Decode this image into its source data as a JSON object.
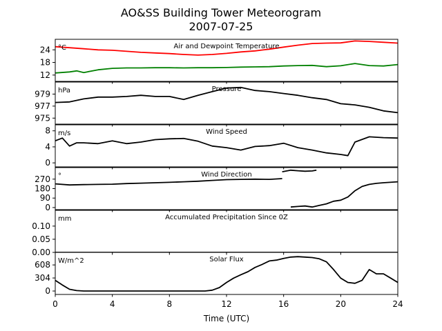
{
  "figure": {
    "title_line1": "AO&SS Building Tower Meteorogram",
    "title_line2": "2007-07-25",
    "xlabel": "Time (UTC)",
    "x_ticks": [
      0,
      4,
      8,
      12,
      16,
      20,
      24
    ]
  },
  "chart_data": [
    {
      "type": "line",
      "title": "Air and Dewpoint Temperature",
      "unit": "°C",
      "ylim": [
        9,
        29
      ],
      "yticks": [
        12,
        18,
        24
      ],
      "series": [
        {
          "color": "#ff0000",
          "x": [
            0,
            1,
            2,
            3,
            4,
            5,
            6,
            7,
            8,
            9,
            10,
            11,
            12,
            13,
            14,
            15,
            16,
            17,
            18,
            19,
            20,
            21,
            22,
            23,
            24
          ],
          "values": [
            25.5,
            25,
            24.5,
            24,
            23.8,
            23.3,
            22.8,
            22.5,
            22.2,
            21.8,
            21.5,
            21.8,
            22.3,
            23,
            23.5,
            24.3,
            25.3,
            26.2,
            27,
            27.2,
            27.3,
            28.2,
            28,
            27.6,
            27.2
          ]
        },
        {
          "color": "#008000",
          "x": [
            0,
            1,
            1.5,
            2,
            3,
            4,
            5,
            6,
            7,
            8,
            9,
            10,
            11,
            12,
            13,
            14,
            15,
            16,
            17,
            18,
            19,
            20,
            21,
            22,
            23,
            24
          ],
          "values": [
            13,
            13.5,
            14,
            13.2,
            14.5,
            15.2,
            15.4,
            15.4,
            15.5,
            15.5,
            15.4,
            15.5,
            15.5,
            15.6,
            15.8,
            15.9,
            16,
            16.3,
            16.5,
            16.6,
            16,
            16.4,
            17.5,
            16.5,
            16.3,
            17
          ]
        }
      ]
    },
    {
      "type": "line",
      "title": "Pressure",
      "unit": "hPa",
      "ylim": [
        974,
        981
      ],
      "yticks": [
        975,
        977,
        979
      ],
      "series": [
        {
          "color": "#000000",
          "x": [
            0,
            1,
            2,
            3,
            4,
            5,
            6,
            7,
            8,
            9,
            10,
            11,
            12,
            13,
            14,
            15,
            16,
            17,
            18,
            19,
            20,
            21,
            22,
            23,
            24
          ],
          "values": [
            977.6,
            977.7,
            978.2,
            978.5,
            978.5,
            978.6,
            978.8,
            978.6,
            978.6,
            978.1,
            978.8,
            979.4,
            980,
            980.1,
            979.6,
            979.4,
            979.1,
            978.8,
            978.4,
            978.1,
            977.4,
            977.2,
            976.8,
            976.2,
            975.9
          ]
        }
      ]
    },
    {
      "type": "line",
      "title": "Wind Speed",
      "unit": "m/s",
      "ylim": [
        -1,
        9.5
      ],
      "yticks": [
        0,
        4,
        8
      ],
      "series": [
        {
          "color": "#000000",
          "x": [
            0,
            0.5,
            1,
            1.5,
            2,
            3,
            4,
            5,
            6,
            7,
            8,
            9,
            10,
            11,
            12,
            13,
            14,
            15,
            16,
            17,
            18,
            19,
            20,
            20.5,
            21,
            22,
            23,
            24
          ],
          "values": [
            5.5,
            6.2,
            4.2,
            5,
            5,
            4.8,
            5.5,
            4.8,
            5.2,
            5.8,
            6,
            6.1,
            5.4,
            4.2,
            3.8,
            3.2,
            4.1,
            4.3,
            4.9,
            3.8,
            3.2,
            2.5,
            2.1,
            1.8,
            5.2,
            6.5,
            6.3,
            6.2
          ]
        }
      ]
    },
    {
      "type": "line",
      "title": "Wind Direction",
      "unit": "°",
      "ylim": [
        -20,
        380
      ],
      "yticks": [
        0,
        90,
        180,
        270
      ],
      "series": [
        {
          "color": "#000000",
          "x": [
            0,
            1,
            2,
            3,
            4,
            5,
            6,
            7,
            8,
            9,
            10,
            11,
            12,
            13,
            14,
            15,
            15.9
          ],
          "values": [
            225,
            215,
            218,
            220,
            222,
            228,
            232,
            236,
            240,
            245,
            250,
            258,
            265,
            268,
            270,
            268,
            275
          ]
        },
        {
          "color": "#000000",
          "x": [
            15.9,
            16.5,
            17,
            17.5,
            18,
            18.3
          ],
          "values": [
            340,
            355,
            350,
            345,
            348,
            355
          ]
        },
        {
          "color": "#000000",
          "x": [
            16.5,
            17,
            17.5,
            18,
            18.5,
            19,
            19.5,
            20,
            20.5,
            21,
            21.5,
            22,
            22.5,
            23,
            24
          ],
          "values": [
            5,
            10,
            15,
            5,
            20,
            35,
            60,
            70,
            100,
            160,
            200,
            220,
            230,
            236,
            245
          ]
        }
      ]
    },
    {
      "type": "line",
      "title": "Accumulated Precipitation Since 0Z",
      "unit": "mm",
      "ylim": [
        0,
        0.16
      ],
      "yticks": [
        0.0,
        0.05,
        0.1
      ],
      "ytick_labels": [
        "0.00",
        "0.05",
        "0.10"
      ],
      "series": [
        {
          "color": "#000000",
          "x": [
            0,
            24
          ],
          "values": [
            0,
            0
          ]
        }
      ]
    },
    {
      "type": "line",
      "title": "Solar Flux",
      "unit": "W/m^2",
      "ylim": [
        -80,
        900
      ],
      "yticks": [
        0,
        304,
        608
      ],
      "series": [
        {
          "color": "#000000",
          "x": [
            0,
            0.5,
            1,
            1.5,
            2,
            3,
            4,
            5,
            6,
            7,
            8,
            9,
            10,
            10.5,
            11,
            11.5,
            12,
            12.5,
            13,
            13.5,
            14,
            14.5,
            15,
            15.5,
            16,
            16.5,
            17,
            17.5,
            18,
            18.5,
            19,
            19.5,
            20,
            20.5,
            21,
            21.5,
            22,
            22.5,
            23,
            23.5,
            24
          ],
          "values": [
            250,
            140,
            40,
            10,
            0,
            0,
            0,
            0,
            0,
            0,
            0,
            0,
            0,
            0,
            20,
            80,
            200,
            300,
            380,
            450,
            550,
            620,
            700,
            720,
            760,
            790,
            800,
            790,
            780,
            750,
            680,
            500,
            300,
            200,
            180,
            250,
            500,
            400,
            400,
            300,
            200
          ]
        }
      ]
    }
  ]
}
